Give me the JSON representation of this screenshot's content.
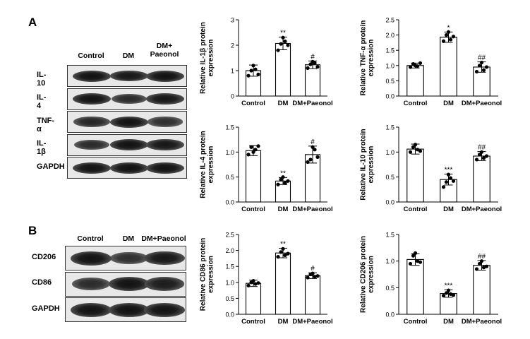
{
  "figure": {
    "panel_a_letter": "A",
    "panel_b_letter": "B"
  },
  "blot_a": {
    "columns": [
      "Control",
      "DM",
      "DM+\nPaeonol"
    ],
    "rows": [
      {
        "label": "IL-10",
        "bands": [
          1.0,
          0.95,
          1.0
        ]
      },
      {
        "label": "IL-4",
        "bands": [
          1.0,
          0.75,
          0.95
        ]
      },
      {
        "label": "TNF-α",
        "bands": [
          0.8,
          1.0,
          0.7
        ]
      },
      {
        "label": "IL-1β",
        "bands": [
          0.75,
          1.0,
          0.95
        ]
      },
      {
        "label": "GAPDH",
        "bands": [
          1.0,
          1.0,
          1.0
        ]
      }
    ]
  },
  "blot_b": {
    "columns": [
      "Control",
      "DM",
      "DM+Paeonol"
    ],
    "rows": [
      {
        "label": "CD206",
        "bands": [
          1.0,
          0.7,
          0.95
        ]
      },
      {
        "label": "CD86",
        "bands": [
          0.75,
          1.0,
          0.9
        ]
      },
      {
        "label": "GAPDH",
        "bands": [
          1.0,
          1.0,
          1.0
        ]
      }
    ]
  },
  "chart_data": [
    {
      "type": "bar",
      "ylabel": "Relative IL-1β protein\nexpression",
      "categories": [
        "Control",
        "DM",
        "DM+Paeonol"
      ],
      "values": [
        1.0,
        2.07,
        1.23
      ],
      "errors": [
        0.22,
        0.25,
        0.15
      ],
      "points": [
        [
          0.8,
          1.0,
          1.2,
          1.05,
          0.85
        ],
        [
          1.8,
          2.05,
          2.3,
          2.15,
          2.0
        ],
        [
          1.1,
          1.25,
          1.35,
          1.3,
          1.15
        ]
      ],
      "annotations": [
        "",
        "**",
        "#"
      ],
      "ylim": [
        0,
        3
      ],
      "yticks": [
        0,
        1,
        2,
        3
      ]
    },
    {
      "type": "bar",
      "ylabel": "Relative TNF-α protein\nexpression",
      "categories": [
        "Control",
        "DM",
        "DM+Paeonol"
      ],
      "values": [
        1.0,
        1.93,
        0.95
      ],
      "errors": [
        0.08,
        0.17,
        0.17
      ],
      "points": [
        [
          0.95,
          1.05,
          1.0,
          0.98,
          1.08
        ],
        [
          1.8,
          2.0,
          2.1,
          1.85,
          1.95
        ],
        [
          0.8,
          1.0,
          1.1,
          0.85,
          0.95
        ]
      ],
      "annotations": [
        "",
        "*",
        "##"
      ],
      "ylim": [
        0,
        2.5
      ],
      "yticks": [
        0.0,
        0.5,
        1.0,
        1.5,
        2.0,
        2.5
      ]
    },
    {
      "type": "bar",
      "ylabel": "Relative IL-4 protein\nexpression",
      "categories": [
        "Control",
        "DM",
        "DM+Paeonol"
      ],
      "values": [
        1.03,
        0.42,
        0.95
      ],
      "errors": [
        0.1,
        0.07,
        0.17
      ],
      "points": [
        [
          0.95,
          1.1,
          1.0,
          1.05,
          1.12
        ],
        [
          0.35,
          0.45,
          0.5,
          0.38,
          0.42
        ],
        [
          0.8,
          0.85,
          1.1,
          1.05,
          0.9
        ]
      ],
      "annotations": [
        "",
        "**",
        "#"
      ],
      "ylim": [
        0,
        1.5
      ],
      "yticks": [
        0.0,
        0.5,
        1.0,
        1.5
      ]
    },
    {
      "type": "bar",
      "ylabel": "Relative IL-10 protein\nexpression",
      "categories": [
        "Control",
        "DM",
        "DM+Paeonol"
      ],
      "values": [
        1.06,
        0.45,
        0.92
      ],
      "errors": [
        0.1,
        0.11,
        0.09
      ],
      "points": [
        [
          1.0,
          1.1,
          1.15,
          1.05,
          1.02
        ],
        [
          0.3,
          0.4,
          0.55,
          0.48,
          0.42
        ],
        [
          0.85,
          0.95,
          1.0,
          0.88,
          0.92
        ]
      ],
      "annotations": [
        "",
        "***",
        "##"
      ],
      "ylim": [
        0,
        1.5
      ],
      "yticks": [
        0.0,
        0.5,
        1.0,
        1.5
      ]
    },
    {
      "type": "bar",
      "ylabel": "Relative CD86 protein\nexpression",
      "categories": [
        "Control",
        "DM",
        "DM+Paeonol"
      ],
      "values": [
        0.97,
        1.92,
        1.21
      ],
      "errors": [
        0.1,
        0.15,
        0.09
      ],
      "points": [
        [
          0.9,
          1.0,
          1.05,
          0.95,
          0.98
        ],
        [
          1.8,
          1.95,
          2.05,
          1.85,
          1.9
        ],
        [
          1.15,
          1.25,
          1.28,
          1.18,
          1.2
        ]
      ],
      "annotations": [
        "",
        "**",
        "#"
      ],
      "ylim": [
        0,
        2.5
      ],
      "yticks": [
        0.0,
        0.5,
        1.0,
        1.5,
        2.0,
        2.5
      ]
    },
    {
      "type": "bar",
      "ylabel": "Relative CD206 protein\nexpression",
      "categories": [
        "Control",
        "DM",
        "DM+Paeonol"
      ],
      "values": [
        1.03,
        0.39,
        0.92
      ],
      "errors": [
        0.11,
        0.07,
        0.09
      ],
      "points": [
        [
          0.95,
          1.1,
          1.15,
          1.0,
          0.98
        ],
        [
          0.35,
          0.4,
          0.45,
          0.38,
          0.36
        ],
        [
          0.85,
          0.95,
          1.0,
          0.88,
          0.9
        ]
      ],
      "annotations": [
        "",
        "***",
        "##"
      ],
      "ylim": [
        0,
        1.5
      ],
      "yticks": [
        0.0,
        0.5,
        1.0,
        1.5
      ]
    }
  ]
}
